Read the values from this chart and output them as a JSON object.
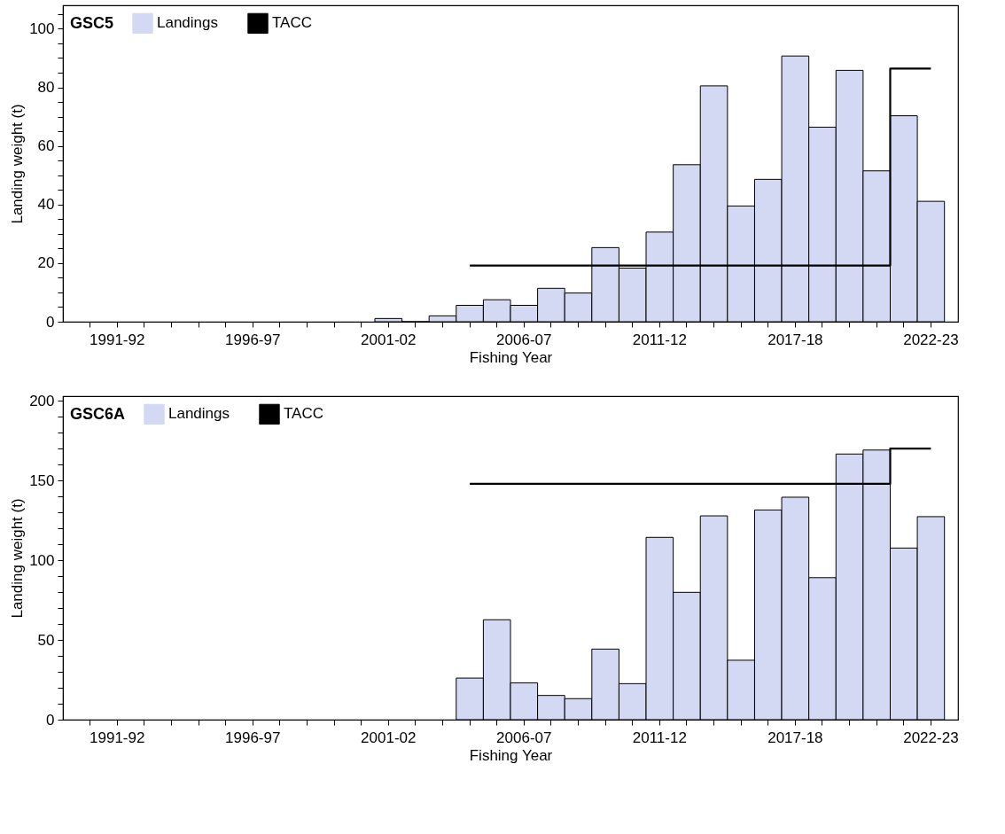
{
  "chart_data": [
    {
      "type": "bar",
      "legend_title": "GSC5",
      "xlabel": "Fishing Year",
      "ylabel": "Landing weight (t)",
      "categories": [
        null,
        "1991-92",
        null,
        null,
        null,
        null,
        "1996-97",
        null,
        null,
        null,
        null,
        "2001-02",
        null,
        null,
        null,
        null,
        "2006-07",
        null,
        null,
        null,
        null,
        "2011-12",
        null,
        null,
        null,
        null,
        "2017-18",
        null,
        null,
        null,
        null,
        "2022-23"
      ],
      "ylim": [
        0,
        108
      ],
      "yticks": [
        0,
        {
          "value": 5,
          "label": null
        },
        {
          "value": 10,
          "label": null
        },
        {
          "value": 15,
          "label": null
        },
        20,
        {
          "value": 25,
          "label": null
        },
        {
          "value": 30,
          "label": null
        },
        {
          "value": 35,
          "label": null
        },
        40,
        {
          "value": 45,
          "label": null
        },
        {
          "value": 50,
          "label": null
        },
        {
          "value": 55,
          "label": null
        },
        60,
        {
          "value": 65,
          "label": null
        },
        {
          "value": 70,
          "label": null
        },
        {
          "value": 75,
          "label": null
        },
        80,
        {
          "value": 85,
          "label": null
        },
        {
          "value": 90,
          "label": null
        },
        {
          "value": 95,
          "label": null
        },
        100,
        {
          "value": 105,
          "label": null
        }
      ],
      "legend": "top left",
      "series": [
        {
          "name": "Landings",
          "color": "#d3d9f2",
          "values": [
            null,
            null,
            null,
            null,
            null,
            null,
            null,
            null,
            null,
            null,
            null,
            1.1,
            0,
            2.0,
            5.6,
            7.5,
            5.6,
            11.4,
            9.8,
            25.3,
            18.3,
            30.6,
            53.6,
            80.5,
            39.5,
            48.6,
            90.7,
            66.4,
            85.8,
            51.5,
            70.3,
            41.1
          ]
        },
        {
          "name": "TACC",
          "type": "step",
          "color": "#000000",
          "values": [
            null,
            null,
            null,
            null,
            null,
            null,
            null,
            null,
            null,
            null,
            null,
            null,
            null,
            null,
            19.2,
            19.2,
            19.2,
            19.2,
            19.2,
            19.2,
            19.2,
            19.2,
            19.2,
            19.2,
            19.2,
            19.2,
            19.2,
            19.2,
            19.2,
            19.2,
            86.4,
            86.4
          ]
        }
      ]
    },
    {
      "type": "bar",
      "legend_title": "GSC6A",
      "xlabel": "Fishing Year",
      "ylabel": "Landing weight (t)",
      "categories": [
        null,
        "1991-92",
        null,
        null,
        null,
        null,
        "1996-97",
        null,
        null,
        null,
        null,
        "2001-02",
        null,
        null,
        null,
        null,
        "2006-07",
        null,
        null,
        null,
        null,
        "2011-12",
        null,
        null,
        null,
        null,
        "2017-18",
        null,
        null,
        null,
        null,
        "2022-23"
      ],
      "ylim": [
        0,
        203
      ],
      "yticks": [
        0,
        {
          "value": 10,
          "label": null
        },
        {
          "value": 20,
          "label": null
        },
        {
          "value": 30,
          "label": null
        },
        {
          "value": 40,
          "label": null
        },
        50,
        {
          "value": 60,
          "label": null
        },
        {
          "value": 70,
          "label": null
        },
        {
          "value": 80,
          "label": null
        },
        {
          "value": 90,
          "label": null
        },
        100,
        {
          "value": 110,
          "label": null
        },
        {
          "value": 120,
          "label": null
        },
        {
          "value": 130,
          "label": null
        },
        {
          "value": 140,
          "label": null
        },
        150,
        {
          "value": 160,
          "label": null
        },
        {
          "value": 170,
          "label": null
        },
        {
          "value": 180,
          "label": null
        },
        {
          "value": 190,
          "label": null
        },
        200
      ],
      "legend": "top left",
      "series": [
        {
          "name": "Landings",
          "color": "#d3d9f2",
          "values": [
            null,
            null,
            null,
            null,
            null,
            null,
            null,
            null,
            null,
            null,
            null,
            null,
            null,
            null,
            26.1,
            62.7,
            23.1,
            15.2,
            13.2,
            44.3,
            22.6,
            114.4,
            79.9,
            127.9,
            37.3,
            131.6,
            139.6,
            89.1,
            166.7,
            169.2,
            107.7,
            127.4
          ]
        },
        {
          "name": "TACC",
          "type": "step",
          "color": "#000000",
          "values": [
            null,
            null,
            null,
            null,
            null,
            null,
            null,
            null,
            null,
            null,
            null,
            null,
            null,
            null,
            148.0,
            148.0,
            148.0,
            148.0,
            148.0,
            148.0,
            148.0,
            148.0,
            148.0,
            148.0,
            148.0,
            148.0,
            148.0,
            148.0,
            148.0,
            148.0,
            170.1,
            170.1
          ]
        }
      ]
    }
  ]
}
